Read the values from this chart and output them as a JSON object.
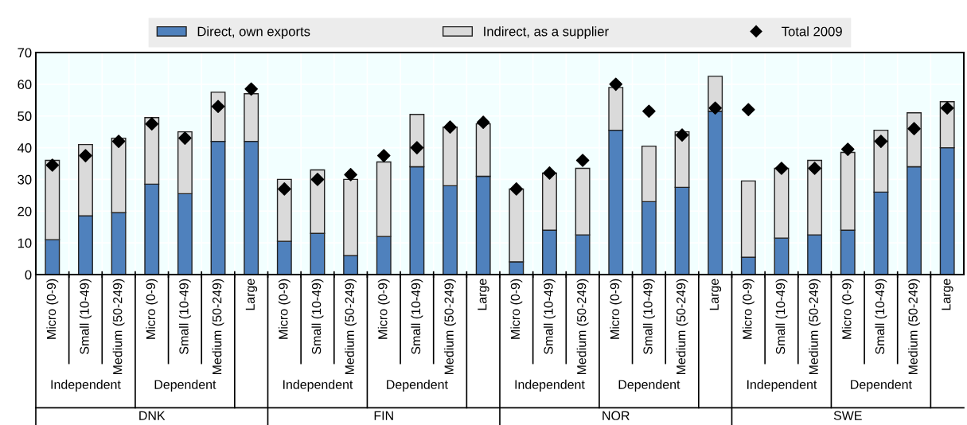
{
  "chart_data": {
    "type": "bar",
    "stacked": true,
    "categories": [
      "Micro (0-9)",
      "Small (10-49)",
      "Medium (50-249)",
      "Micro (0-9)",
      "Small (10-49)",
      "Medium (50-249)",
      "Large",
      "Micro (0-9)",
      "Small (10-49)",
      "Medium (50-249)",
      "Micro (0-9)",
      "Small (10-49)",
      "Medium (50-249)",
      "Large",
      "Micro (0-9)",
      "Small (10-49)",
      "Medium (50-249)",
      "Micro (0-9)",
      "Small (10-49)",
      "Medium (50-249)",
      "Large",
      "Micro (0-9)",
      "Small (10-49)",
      "Medium (50-249)",
      "Micro (0-9)",
      "Small (10-49)",
      "Medium (50-249)",
      "Large"
    ],
    "series": [
      {
        "name": "Direct, own exports",
        "color": "#4f81bd",
        "values": [
          11,
          18.5,
          19.5,
          28.5,
          25.5,
          42,
          42,
          10.5,
          13,
          6,
          12,
          34,
          28,
          31,
          4,
          14,
          12.5,
          45.5,
          23,
          27.5,
          51.5,
          5.5,
          11.5,
          12.5,
          14,
          26,
          34,
          40
        ]
      },
      {
        "name": "Indirect, as a supplier",
        "color": "#dadada",
        "values": [
          25,
          22.5,
          23.5,
          21,
          19.5,
          15.5,
          15,
          19.5,
          20,
          24,
          23.5,
          16.5,
          18.5,
          16.5,
          23,
          18,
          21,
          13.5,
          17.5,
          17.5,
          11,
          24,
          22,
          23.5,
          24.5,
          19.5,
          17,
          14.5
        ]
      },
      {
        "name": "Total 2009",
        "type": "scatter",
        "color": "#000000",
        "marker": "diamond",
        "values": [
          34.5,
          37.5,
          42,
          47.5,
          43,
          53,
          58.5,
          27,
          30,
          31.5,
          37.5,
          40,
          46.5,
          48,
          27,
          32,
          36,
          60,
          51.5,
          44,
          52.5,
          52,
          33.5,
          33.5,
          39.5,
          42,
          46,
          52.5
        ]
      }
    ],
    "ylim": [
      0,
      70
    ],
    "yticks": [
      0,
      10,
      20,
      30,
      40,
      50,
      60,
      70
    ],
    "grid": true,
    "legend": "top",
    "annotations": [
      "Independent",
      "Dependent",
      "DNK",
      "Independent",
      "Dependent",
      "FIN",
      "Independent",
      "Dependent",
      "NOR",
      "Independent",
      "Dependent",
      "SWE"
    ]
  }
}
